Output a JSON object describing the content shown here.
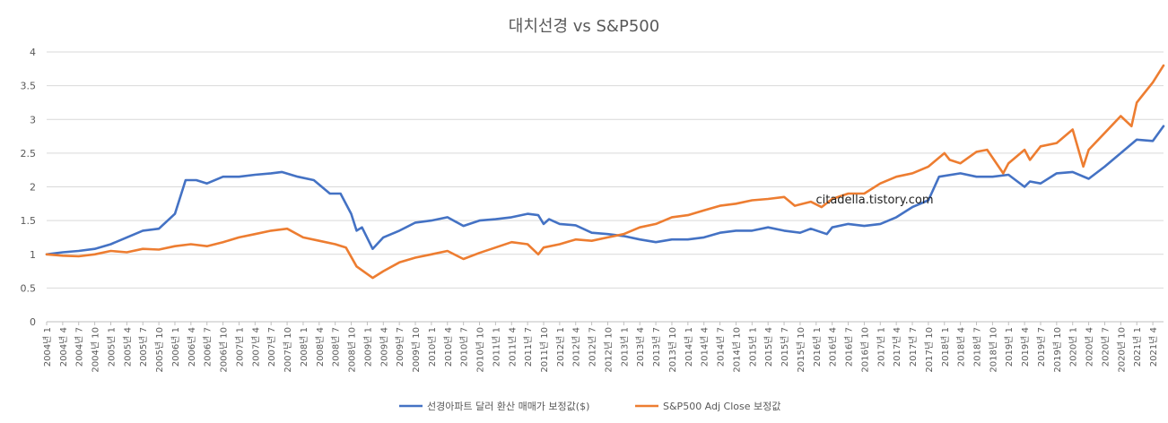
{
  "chart_data": {
    "type": "line",
    "title": "대치선경 vs S&P500",
    "annotation": "citadella.tistory.com",
    "ylim": [
      0,
      4
    ],
    "yticks": [
      "0",
      "0.5",
      "1",
      "1.5",
      "2",
      "2.5",
      "3",
      "3.5",
      "4"
    ],
    "grid": "horizontal",
    "legend_position": "bottom",
    "x_start": "2004-01",
    "x_end": "2021-06",
    "x_tick_every_months": 3,
    "series": [
      {
        "name": "선경아파트 달러 환산 매매가 보정값($)",
        "color": "#4472C4",
        "points": [
          [
            "2004-01",
            1.0
          ],
          [
            "2004-04",
            1.03
          ],
          [
            "2004-07",
            1.05
          ],
          [
            "2004-10",
            1.08
          ],
          [
            "2005-01",
            1.15
          ],
          [
            "2005-04",
            1.25
          ],
          [
            "2005-07",
            1.35
          ],
          [
            "2005-10",
            1.38
          ],
          [
            "2006-01",
            1.6
          ],
          [
            "2006-03",
            2.1
          ],
          [
            "2006-05",
            2.1
          ],
          [
            "2006-07",
            2.05
          ],
          [
            "2006-10",
            2.15
          ],
          [
            "2007-01",
            2.15
          ],
          [
            "2007-04",
            2.18
          ],
          [
            "2007-07",
            2.2
          ],
          [
            "2007-09",
            2.22
          ],
          [
            "2007-12",
            2.15
          ],
          [
            "2008-03",
            2.1
          ],
          [
            "2008-06",
            1.9
          ],
          [
            "2008-08",
            1.9
          ],
          [
            "2008-10",
            1.6
          ],
          [
            "2008-11",
            1.35
          ],
          [
            "2008-12",
            1.4
          ],
          [
            "2009-02",
            1.08
          ],
          [
            "2009-04",
            1.25
          ],
          [
            "2009-07",
            1.35
          ],
          [
            "2009-10",
            1.47
          ],
          [
            "2010-01",
            1.5
          ],
          [
            "2010-04",
            1.55
          ],
          [
            "2010-07",
            1.42
          ],
          [
            "2010-10",
            1.5
          ],
          [
            "2011-01",
            1.52
          ],
          [
            "2011-04",
            1.55
          ],
          [
            "2011-07",
            1.6
          ],
          [
            "2011-09",
            1.58
          ],
          [
            "2011-10",
            1.45
          ],
          [
            "2011-11",
            1.52
          ],
          [
            "2012-01",
            1.45
          ],
          [
            "2012-04",
            1.43
          ],
          [
            "2012-07",
            1.32
          ],
          [
            "2012-10",
            1.3
          ],
          [
            "2013-01",
            1.27
          ],
          [
            "2013-04",
            1.22
          ],
          [
            "2013-07",
            1.18
          ],
          [
            "2013-10",
            1.22
          ],
          [
            "2014-01",
            1.22
          ],
          [
            "2014-04",
            1.25
          ],
          [
            "2014-07",
            1.32
          ],
          [
            "2014-10",
            1.35
          ],
          [
            "2015-01",
            1.35
          ],
          [
            "2015-04",
            1.4
          ],
          [
            "2015-07",
            1.35
          ],
          [
            "2015-10",
            1.32
          ],
          [
            "2015-12",
            1.38
          ],
          [
            "2016-03",
            1.3
          ],
          [
            "2016-04",
            1.4
          ],
          [
            "2016-07",
            1.45
          ],
          [
            "2016-10",
            1.42
          ],
          [
            "2017-01",
            1.45
          ],
          [
            "2017-04",
            1.55
          ],
          [
            "2017-07",
            1.7
          ],
          [
            "2017-10",
            1.8
          ],
          [
            "2017-12",
            2.15
          ],
          [
            "2018-04",
            2.2
          ],
          [
            "2018-07",
            2.15
          ],
          [
            "2018-10",
            2.15
          ],
          [
            "2019-01",
            2.18
          ],
          [
            "2019-04",
            2.0
          ],
          [
            "2019-05",
            2.08
          ],
          [
            "2019-07",
            2.05
          ],
          [
            "2019-10",
            2.2
          ],
          [
            "2020-01",
            2.22
          ],
          [
            "2020-04",
            2.12
          ],
          [
            "2020-07",
            2.3
          ],
          [
            "2020-10",
            2.5
          ],
          [
            "2021-01",
            2.7
          ],
          [
            "2021-04",
            2.68
          ],
          [
            "2021-06",
            2.9
          ]
        ]
      },
      {
        "name": "S&P500 Adj Close 보정값",
        "color": "#ED7D31",
        "points": [
          [
            "2004-01",
            1.0
          ],
          [
            "2004-04",
            0.98
          ],
          [
            "2004-07",
            0.97
          ],
          [
            "2004-10",
            1.0
          ],
          [
            "2005-01",
            1.05
          ],
          [
            "2005-04",
            1.03
          ],
          [
            "2005-07",
            1.08
          ],
          [
            "2005-10",
            1.07
          ],
          [
            "2006-01",
            1.12
          ],
          [
            "2006-04",
            1.15
          ],
          [
            "2006-07",
            1.12
          ],
          [
            "2006-10",
            1.18
          ],
          [
            "2007-01",
            1.25
          ],
          [
            "2007-04",
            1.3
          ],
          [
            "2007-07",
            1.35
          ],
          [
            "2007-10",
            1.38
          ],
          [
            "2008-01",
            1.25
          ],
          [
            "2008-04",
            1.2
          ],
          [
            "2008-07",
            1.15
          ],
          [
            "2008-09",
            1.1
          ],
          [
            "2008-11",
            0.82
          ],
          [
            "2009-02",
            0.65
          ],
          [
            "2009-04",
            0.75
          ],
          [
            "2009-07",
            0.88
          ],
          [
            "2009-10",
            0.95
          ],
          [
            "2010-01",
            1.0
          ],
          [
            "2010-04",
            1.05
          ],
          [
            "2010-07",
            0.93
          ],
          [
            "2010-10",
            1.02
          ],
          [
            "2011-01",
            1.1
          ],
          [
            "2011-04",
            1.18
          ],
          [
            "2011-07",
            1.15
          ],
          [
            "2011-09",
            1.0
          ],
          [
            "2011-10",
            1.1
          ],
          [
            "2012-01",
            1.15
          ],
          [
            "2012-04",
            1.22
          ],
          [
            "2012-07",
            1.2
          ],
          [
            "2012-10",
            1.25
          ],
          [
            "2013-01",
            1.3
          ],
          [
            "2013-04",
            1.4
          ],
          [
            "2013-07",
            1.45
          ],
          [
            "2013-10",
            1.55
          ],
          [
            "2014-01",
            1.58
          ],
          [
            "2014-04",
            1.65
          ],
          [
            "2014-07",
            1.72
          ],
          [
            "2014-10",
            1.75
          ],
          [
            "2015-01",
            1.8
          ],
          [
            "2015-04",
            1.82
          ],
          [
            "2015-07",
            1.85
          ],
          [
            "2015-09",
            1.72
          ],
          [
            "2015-12",
            1.78
          ],
          [
            "2016-02",
            1.7
          ],
          [
            "2016-04",
            1.82
          ],
          [
            "2016-07",
            1.9
          ],
          [
            "2016-10",
            1.9
          ],
          [
            "2017-01",
            2.05
          ],
          [
            "2017-04",
            2.15
          ],
          [
            "2017-07",
            2.2
          ],
          [
            "2017-10",
            2.3
          ],
          [
            "2018-01",
            2.5
          ],
          [
            "2018-02",
            2.4
          ],
          [
            "2018-04",
            2.35
          ],
          [
            "2018-07",
            2.52
          ],
          [
            "2018-09",
            2.55
          ],
          [
            "2018-12",
            2.2
          ],
          [
            "2019-01",
            2.35
          ],
          [
            "2019-04",
            2.55
          ],
          [
            "2019-05",
            2.4
          ],
          [
            "2019-07",
            2.6
          ],
          [
            "2019-10",
            2.65
          ],
          [
            "2020-01",
            2.85
          ],
          [
            "2020-03",
            2.3
          ],
          [
            "2020-04",
            2.55
          ],
          [
            "2020-07",
            2.8
          ],
          [
            "2020-10",
            3.05
          ],
          [
            "2020-12",
            2.9
          ],
          [
            "2021-01",
            3.25
          ],
          [
            "2021-04",
            3.55
          ],
          [
            "2021-06",
            3.8
          ]
        ]
      }
    ]
  }
}
